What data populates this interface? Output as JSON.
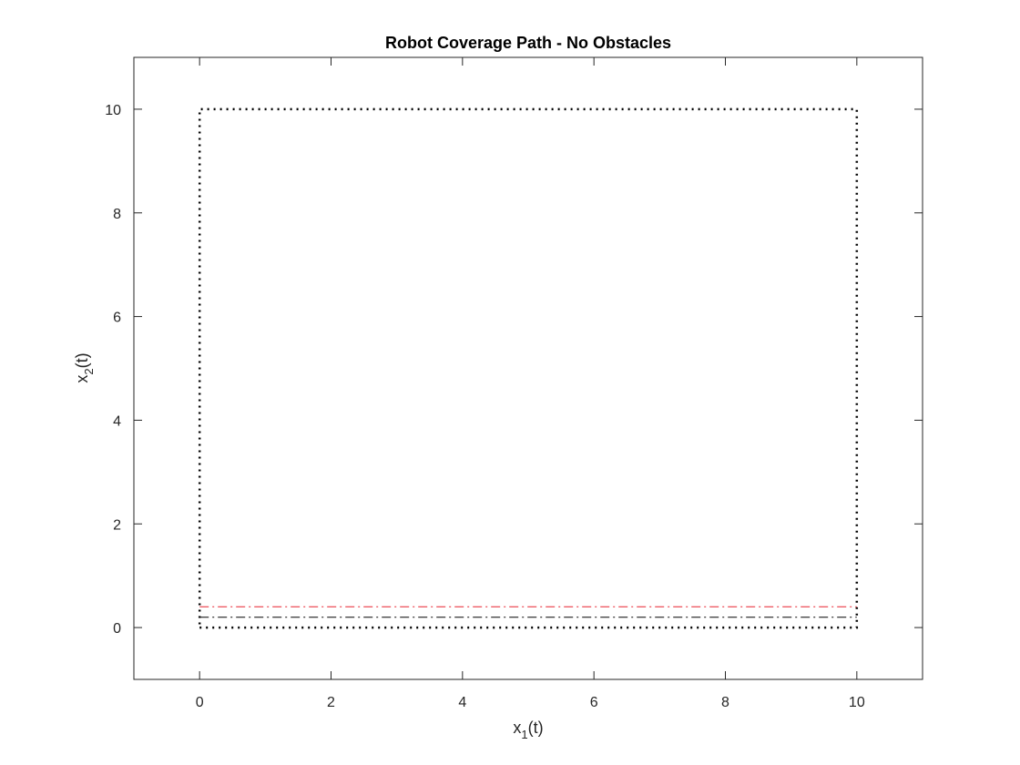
{
  "chart_data": {
    "type": "line",
    "title": "Robot Coverage Path - No Obstacles",
    "xlabel": {
      "base": "x",
      "sub": "1",
      "suffix": "(t)"
    },
    "ylabel": {
      "base": "x",
      "sub": "2",
      "suffix": "(t)"
    },
    "xlim": [
      -1,
      11
    ],
    "ylim": [
      -1,
      11
    ],
    "xticks": [
      0,
      2,
      4,
      6,
      8,
      10
    ],
    "yticks": [
      0,
      2,
      4,
      6,
      8,
      10
    ],
    "tick_labels_x": [
      "0",
      "2",
      "4",
      "6",
      "8",
      "10"
    ],
    "tick_labels_y": [
      "0",
      "2",
      "4",
      "6",
      "8",
      "10"
    ],
    "grid": false,
    "box": true,
    "series": [
      {
        "style": "dotted",
        "color": "#000000",
        "x": [
          0,
          10,
          10,
          0,
          0
        ],
        "y": [
          0,
          0,
          10,
          10,
          0
        ]
      },
      {
        "style": "dash-dot",
        "color": "#000000",
        "x": [
          0,
          10
        ],
        "y": [
          0.2,
          0.2
        ]
      },
      {
        "style": "dash-dot",
        "color": "#e8212d",
        "x": [
          0,
          10
        ],
        "y": [
          0.4,
          0.4
        ]
      }
    ]
  }
}
